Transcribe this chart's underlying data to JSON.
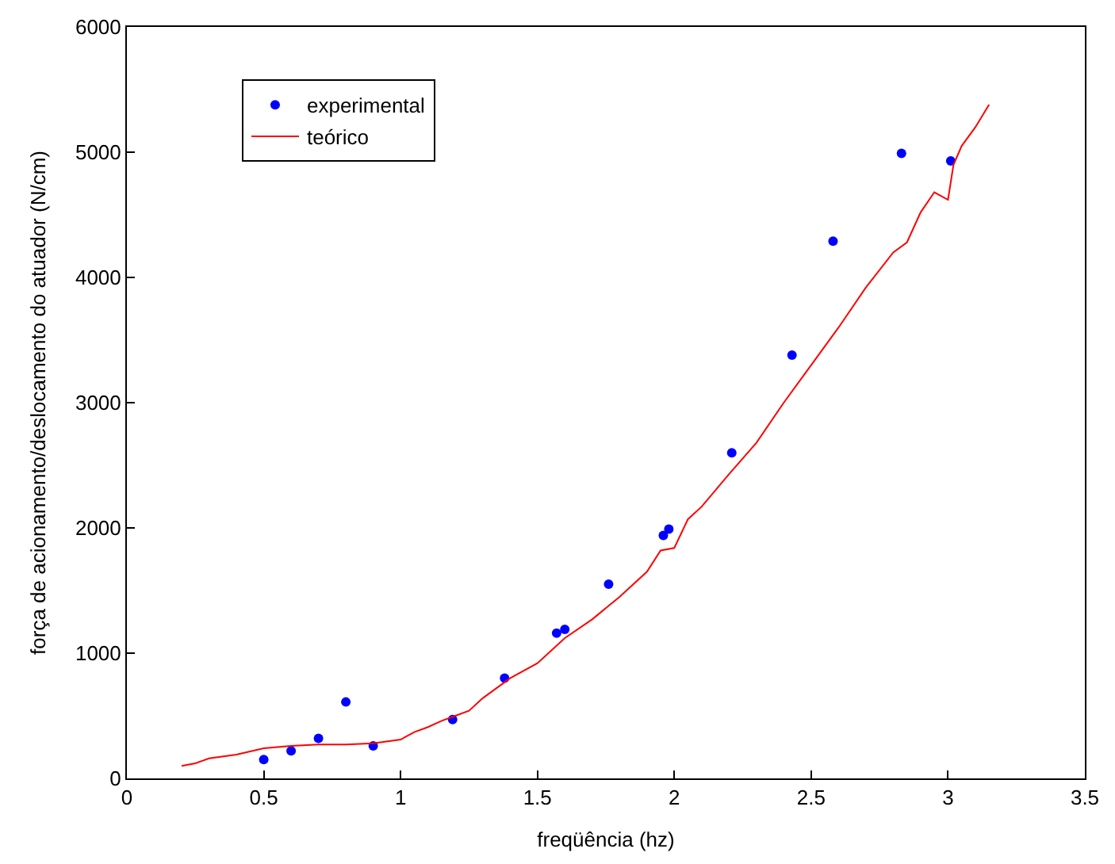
{
  "chart_data": {
    "type": "scatter",
    "xlabel": "freqüência (hz)",
    "ylabel": "força de acionamento/deslocamento do atuador (N/cm)",
    "xlim": [
      0,
      3.5
    ],
    "xticks": [
      0,
      0.5,
      1,
      1.5,
      2,
      2.5,
      3,
      3.5
    ],
    "ylim": [
      0,
      6000
    ],
    "yticks": [
      0,
      1000,
      2000,
      3000,
      4000,
      5000,
      6000
    ],
    "legend": "top left",
    "series": [
      {
        "name": "experimental",
        "marker": "circle",
        "color": "#0000ff",
        "x": [
          0.5,
          0.6,
          0.7,
          0.8,
          0.9,
          1.19,
          1.38,
          1.57,
          1.6,
          1.76,
          1.96,
          1.98,
          2.21,
          2.43,
          2.58,
          2.83,
          3.01
        ],
        "values": [
          150,
          220,
          320,
          610,
          260,
          470,
          800,
          1160,
          1190,
          1550,
          1940,
          1990,
          2600,
          3380,
          4290,
          4990,
          4930
        ]
      },
      {
        "name": "teórico",
        "type": "line",
        "marker": "none",
        "line_style": "solid",
        "color": "#ff0000",
        "x": [
          0.2,
          0.25,
          0.3,
          0.4,
          0.5,
          0.6,
          0.7,
          0.8,
          0.9,
          1.0,
          1.05,
          1.1,
          1.15,
          1.2,
          1.25,
          1.3,
          1.4,
          1.5,
          1.6,
          1.7,
          1.8,
          1.9,
          1.95,
          2.0,
          2.05,
          2.1,
          2.2,
          2.3,
          2.4,
          2.5,
          2.6,
          2.7,
          2.8,
          2.85,
          2.9,
          2.95,
          3.0,
          3.02,
          3.05,
          3.1,
          3.15
        ],
        "values": [
          100,
          120,
          160,
          190,
          240,
          260,
          270,
          270,
          280,
          310,
          370,
          410,
          460,
          500,
          540,
          640,
          800,
          920,
          1120,
          1270,
          1450,
          1650,
          1820,
          1840,
          2070,
          2170,
          2430,
          2680,
          3000,
          3300,
          3600,
          3920,
          4200,
          4280,
          4520,
          4680,
          4620,
          4900,
          5050,
          5200,
          5380
        ]
      }
    ]
  }
}
